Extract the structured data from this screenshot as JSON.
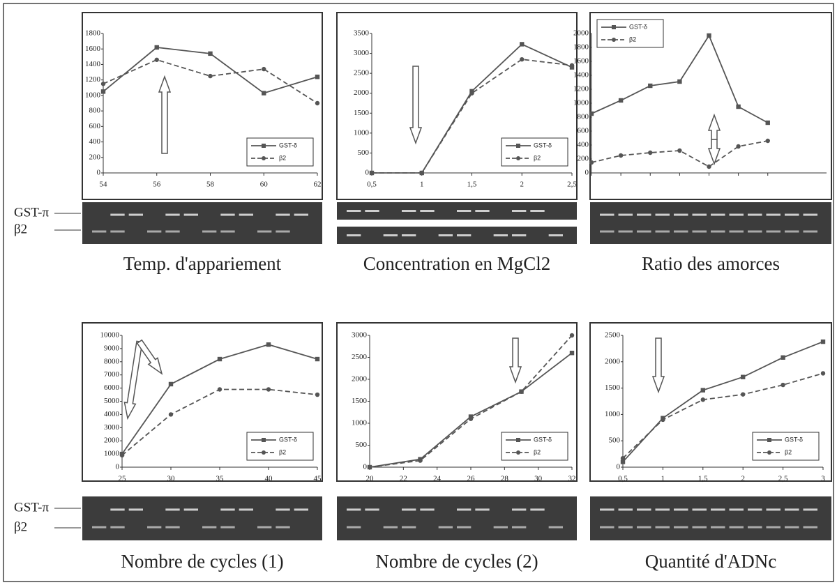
{
  "chart_data": [
    {
      "type": "line",
      "title": "Temp. d'appariement",
      "x": [
        54,
        56,
        58,
        60,
        62
      ],
      "xlim": [
        54,
        62
      ],
      "xticks": [
        54,
        56,
        58,
        60,
        62
      ],
      "ylim": [
        0,
        1800
      ],
      "yticks": [
        0,
        200,
        400,
        600,
        800,
        1000,
        1200,
        1400,
        1600,
        1800
      ],
      "legend": "lower right",
      "series": [
        {
          "name": "GST-δ",
          "color": "#555555",
          "marker": "square",
          "linestyle": "solid",
          "values": [
            1050,
            1620,
            1540,
            1030,
            1240
          ]
        },
        {
          "name": "β2",
          "color": "#555555",
          "marker": "circle",
          "linestyle": "dashed",
          "values": [
            1150,
            1460,
            1250,
            1340,
            900
          ]
        }
      ]
    },
    {
      "type": "line",
      "title": "Concentration en MgCl2",
      "x": [
        0.5,
        1,
        1.5,
        2,
        2.5
      ],
      "xlim": [
        0.5,
        2.5
      ],
      "xticks": [
        {
          "value": 0.5,
          "label": "0,5"
        },
        1,
        {
          "value": 1.5,
          "label": "1,5"
        },
        2,
        {
          "value": 2.5,
          "label": "2,5"
        }
      ],
      "ylim": [
        0,
        3500
      ],
      "yticks": [
        0,
        500,
        1000,
        1500,
        2000,
        2500,
        3000,
        3500
      ],
      "legend": "lower right",
      "series": [
        {
          "name": "GST-δ",
          "color": "#555555",
          "marker": "square",
          "linestyle": "solid",
          "values": [
            0,
            0,
            2050,
            3230,
            2650
          ]
        },
        {
          "name": "β2",
          "color": "#555555",
          "marker": "circle",
          "linestyle": "dashed",
          "values": [
            0,
            0,
            2000,
            2850,
            2700
          ]
        }
      ]
    },
    {
      "type": "line",
      "title": "Ratio des amorces",
      "categories": [
        null,
        null,
        null,
        null,
        null,
        null,
        null
      ],
      "ylim": [
        0,
        2000
      ],
      "yticks": [
        0,
        200,
        400,
        600,
        800,
        1000,
        1200,
        1400,
        1600,
        1800,
        2000
      ],
      "legend": "upper left",
      "series": [
        {
          "name": "GST-δ",
          "color": "#555555",
          "marker": "square",
          "linestyle": "solid",
          "values": [
            850,
            1040,
            1250,
            1310,
            1970,
            950,
            720
          ]
        },
        {
          "name": "β2",
          "color": "#555555",
          "marker": "circle",
          "linestyle": "dashed",
          "values": [
            150,
            250,
            290,
            320,
            90,
            380,
            460
          ]
        }
      ]
    },
    {
      "type": "line",
      "title": "Nombre de cycles (1)",
      "x": [
        25,
        30,
        35,
        40,
        45
      ],
      "xlim": [
        25,
        45
      ],
      "xticks": [
        25,
        30,
        35,
        40,
        45
      ],
      "ylim": [
        0,
        10000
      ],
      "yticks": [
        0,
        1000,
        2000,
        3000,
        4000,
        5000,
        6000,
        7000,
        8000,
        9000,
        10000
      ],
      "legend": "lower right",
      "series": [
        {
          "name": "GST-δ",
          "color": "#555555",
          "marker": "square",
          "linestyle": "solid",
          "values": [
            1000,
            6300,
            8200,
            9300,
            8200
          ]
        },
        {
          "name": "β2",
          "color": "#555555",
          "marker": "circle",
          "linestyle": "dashed",
          "values": [
            900,
            4000,
            5900,
            5900,
            5500
          ]
        }
      ]
    },
    {
      "type": "line",
      "title": "Nombre de cycles (2)",
      "x": [
        20,
        23,
        26,
        29,
        32
      ],
      "xlim": [
        20,
        32
      ],
      "xticks": [
        20,
        22,
        24,
        26,
        28,
        30,
        32
      ],
      "ylim": [
        0,
        3000
      ],
      "yticks": [
        0,
        500,
        1000,
        1500,
        2000,
        2500,
        3000
      ],
      "legend": "lower right",
      "series": [
        {
          "name": "GST-δ",
          "color": "#555555",
          "marker": "square",
          "linestyle": "solid",
          "values": [
            0,
            180,
            1150,
            1720,
            2600
          ]
        },
        {
          "name": "β2",
          "color": "#555555",
          "marker": "circle",
          "linestyle": "dashed",
          "values": [
            0,
            150,
            1100,
            1720,
            3000
          ]
        }
      ]
    },
    {
      "type": "line",
      "title": "Quantité d'ADNc",
      "x": [
        0.5,
        1,
        1.5,
        2,
        2.5,
        3
      ],
      "xlim": [
        0.5,
        3
      ],
      "xticks": [
        {
          "value": 0.5,
          "label": "0,5"
        },
        1,
        {
          "value": 1.5,
          "label": "1,5"
        },
        2,
        {
          "value": 2.5,
          "label": "2,5"
        },
        3
      ],
      "ylim": [
        0,
        2500
      ],
      "yticks": [
        0,
        500,
        1000,
        1500,
        2000,
        2500
      ],
      "legend": "lower right",
      "series": [
        {
          "name": "GST-δ",
          "color": "#555555",
          "marker": "square",
          "linestyle": "solid",
          "values": [
            100,
            930,
            1460,
            1710,
            2080,
            2380
          ]
        },
        {
          "name": "β2",
          "color": "#555555",
          "marker": "circle",
          "linestyle": "dashed",
          "values": [
            170,
            900,
            1280,
            1380,
            1560,
            1780
          ]
        }
      ]
    }
  ],
  "gel_labels": [
    [
      "GST-π",
      "β2"
    ],
    [
      "GST-π",
      "β2"
    ]
  ]
}
